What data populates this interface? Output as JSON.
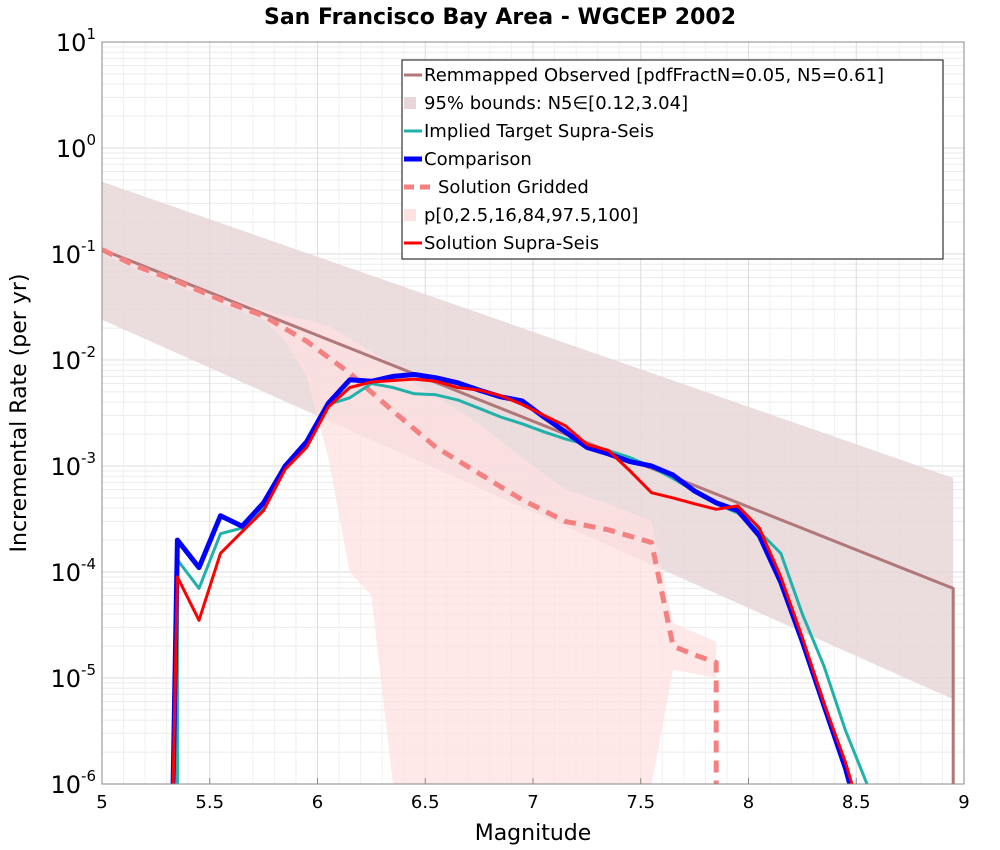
{
  "chart_data": {
    "type": "line",
    "title": "San Francisco Bay Area - WGCEP 2002",
    "xlabel": "Magnitude",
    "ylabel": "Incremental Rate (per yr)",
    "xlim": [
      5,
      9
    ],
    "ylim": [
      1e-06,
      10
    ],
    "yscale": "log",
    "grid": true,
    "legend_position": "top-right",
    "x_ticks": [
      "5",
      "5.5",
      "6",
      "6.5",
      "7",
      "7.5",
      "8",
      "8.5",
      "9"
    ],
    "y_ticks": [
      {
        "base": "10",
        "exp": "1"
      },
      {
        "base": "10",
        "exp": "0"
      },
      {
        "base": "10",
        "exp": "-1"
      },
      {
        "base": "10",
        "exp": "-2"
      },
      {
        "base": "10",
        "exp": "-3"
      },
      {
        "base": "10",
        "exp": "-4"
      },
      {
        "base": "10",
        "exp": "-5"
      },
      {
        "base": "10",
        "exp": "-6"
      }
    ],
    "series": [
      {
        "name": "Remmapped Observed [pdfFractN=0.05, N5=0.61]",
        "kind": "line",
        "color": "#b07878",
        "x": [
          5.0,
          8.95,
          8.95
        ],
        "y": [
          0.11,
          7e-05,
          1e-06
        ]
      },
      {
        "name": "95% bounds: N5∈[0.12,3.04]",
        "kind": "band",
        "color": "#e8d6d8",
        "x": [
          5.0,
          8.95
        ],
        "lower": [
          0.024,
          6.3e-06
        ],
        "upper": [
          0.48,
          0.00077
        ]
      },
      {
        "name": "Implied Target Supra-Seis",
        "kind": "line",
        "color": "#20b2aa",
        "x": [
          5.35,
          5.35,
          5.45,
          5.55,
          5.65,
          5.75,
          5.85,
          5.95,
          6.05,
          6.15,
          6.25,
          6.35,
          6.45,
          6.55,
          6.65,
          6.75,
          6.85,
          6.95,
          7.05,
          7.15,
          7.25,
          7.35,
          7.45,
          7.55,
          7.65,
          7.75,
          7.85,
          7.95,
          8.05,
          8.15,
          8.25,
          8.35,
          8.45,
          8.55
        ],
        "y": [
          1e-06,
          0.00013,
          7e-05,
          0.00023,
          0.00026,
          0.00041,
          0.00095,
          0.0016,
          0.0038,
          0.0044,
          0.006,
          0.0055,
          0.0048,
          0.0047,
          0.0042,
          0.0035,
          0.0029,
          0.0025,
          0.0021,
          0.0018,
          0.0016,
          0.0014,
          0.0012,
          0.00098,
          0.00076,
          0.00058,
          0.00044,
          0.00036,
          0.00024,
          0.00015,
          4e-05,
          1.3e-05,
          3.2e-06,
          1e-06
        ]
      },
      {
        "name": "Comparison",
        "kind": "line",
        "color": "#0000ff",
        "x": [
          5.33,
          5.35,
          5.45,
          5.55,
          5.65,
          5.75,
          5.85,
          5.95,
          6.05,
          6.15,
          6.25,
          6.35,
          6.45,
          6.55,
          6.65,
          6.75,
          6.85,
          6.95,
          7.05,
          7.15,
          7.25,
          7.35,
          7.45,
          7.55,
          7.65,
          7.75,
          7.85,
          7.95,
          8.05,
          8.15,
          8.25,
          8.35,
          8.45,
          8.47
        ],
        "y": [
          1e-06,
          0.0002,
          0.00011,
          0.00034,
          0.00027,
          0.00045,
          0.001,
          0.0017,
          0.0039,
          0.0065,
          0.0063,
          0.007,
          0.0073,
          0.0068,
          0.0061,
          0.0052,
          0.0045,
          0.0041,
          0.0029,
          0.0021,
          0.0015,
          0.0013,
          0.0011,
          0.001,
          0.00082,
          0.00058,
          0.00045,
          0.00038,
          0.00022,
          8e-05,
          2.2e-05,
          5.5e-06,
          1.4e-06,
          1e-06
        ]
      },
      {
        "name": "Solution Gridded",
        "kind": "line",
        "color": "#f48080",
        "x": [
          5.0,
          5.15,
          5.35,
          5.55,
          5.75,
          5.95,
          6.15,
          6.35,
          6.55,
          6.75,
          6.95,
          7.15,
          7.35,
          7.55,
          7.65,
          7.75,
          7.85,
          7.85
        ],
        "y": [
          0.11,
          0.078,
          0.055,
          0.037,
          0.026,
          0.015,
          0.0075,
          0.0033,
          0.0015,
          0.00085,
          0.00048,
          0.0003,
          0.00025,
          0.00019,
          2e-05,
          1.65e-05,
          1.4e-05,
          1e-06
        ]
      },
      {
        "name": "p[0,2.5,16,84,97.5,100]",
        "kind": "band",
        "color": "#fde0e0",
        "x": [
          5.0,
          5.15,
          5.35,
          5.55,
          5.75,
          5.85,
          5.95,
          6.05,
          6.15,
          6.25,
          6.35,
          6.45,
          6.55,
          6.75,
          6.95,
          7.15,
          7.35,
          7.55,
          7.65,
          7.75,
          7.85
        ],
        "lower": [
          0.1,
          0.072,
          0.05,
          0.034,
          0.024,
          0.015,
          0.007,
          0.0012,
          0.0001,
          6e-05,
          1e-06,
          1e-06,
          1e-06,
          1e-06,
          1e-06,
          1e-06,
          1e-06,
          1e-06,
          1.2e-05,
          1.1e-05,
          1e-05
        ],
        "upper": [
          0.12,
          0.085,
          0.06,
          0.041,
          0.03,
          0.026,
          0.024,
          0.021,
          0.016,
          0.012,
          0.009,
          0.006,
          0.0045,
          0.0025,
          0.0012,
          0.0006,
          0.00044,
          0.0003,
          3.3e-05,
          2.7e-05,
          2.2e-05
        ]
      },
      {
        "name": "Solution Supra-Seis",
        "kind": "line",
        "color": "#ff0000",
        "x": [
          5.33,
          5.35,
          5.45,
          5.55,
          5.65,
          5.75,
          5.85,
          5.95,
          6.05,
          6.15,
          6.25,
          6.35,
          6.45,
          6.55,
          6.65,
          6.75,
          6.85,
          6.95,
          7.05,
          7.15,
          7.25,
          7.35,
          7.45,
          7.55,
          7.65,
          7.75,
          7.85,
          7.95,
          8.05,
          8.15,
          8.25,
          8.35,
          8.45,
          8.48
        ],
        "y": [
          1e-06,
          9e-05,
          3.5e-05,
          0.00015,
          0.00024,
          0.00038,
          0.00093,
          0.0015,
          0.0036,
          0.0055,
          0.0062,
          0.0064,
          0.0066,
          0.0063,
          0.0055,
          0.0052,
          0.0046,
          0.0038,
          0.003,
          0.0024,
          0.0016,
          0.0014,
          0.0009,
          0.00056,
          0.0005,
          0.00044,
          0.00039,
          0.00042,
          0.00026,
          9e-05,
          2.4e-05,
          5.8e-06,
          1.6e-06,
          1e-06
        ]
      }
    ]
  }
}
